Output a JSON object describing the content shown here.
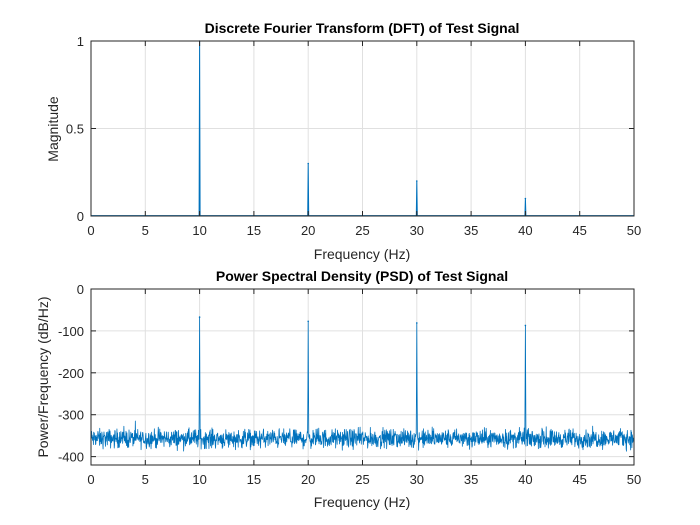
{
  "chart_data": [
    {
      "type": "line",
      "title": "Discrete Fourier Transform (DFT) of Test Signal",
      "xlabel": "Frequency (Hz)",
      "ylabel": "Magnitude",
      "xlim": [
        0,
        50
      ],
      "ylim": [
        0,
        1
      ],
      "xticks": [
        0,
        5,
        10,
        15,
        20,
        25,
        30,
        35,
        40,
        45,
        50
      ],
      "yticks": [
        0,
        0.5,
        1
      ],
      "ytick_labels": [
        "0",
        "0.5",
        "1"
      ],
      "grid": true,
      "color": "#0072BD",
      "baseline": 0.002,
      "peaks": [
        {
          "x": 10,
          "y": 1.0
        },
        {
          "x": 20,
          "y": 0.3
        },
        {
          "x": 30,
          "y": 0.2
        },
        {
          "x": 40,
          "y": 0.1
        }
      ]
    },
    {
      "type": "line",
      "title": "Power Spectral Density (PSD) of Test Signal",
      "xlabel": "Frequency (Hz)",
      "ylabel": "Power/Frequency (dB/Hz)",
      "xlim": [
        0,
        50
      ],
      "ylim": [
        -420,
        0
      ],
      "xticks": [
        0,
        5,
        10,
        15,
        20,
        25,
        30,
        35,
        40,
        45,
        50
      ],
      "yticks": [
        0,
        -100,
        -200,
        -300,
        -400
      ],
      "ytick_labels": [
        "0",
        "-100",
        "-200",
        "-300",
        "-400"
      ],
      "grid": true,
      "color": "#0072BD",
      "noise_floor_mean": -357,
      "noise_floor_range": [
        -400,
        -315
      ],
      "peaks": [
        {
          "x": 10,
          "y": -67
        },
        {
          "x": 20,
          "y": -77
        },
        {
          "x": 30,
          "y": -81
        },
        {
          "x": 40,
          "y": -87
        }
      ]
    }
  ]
}
